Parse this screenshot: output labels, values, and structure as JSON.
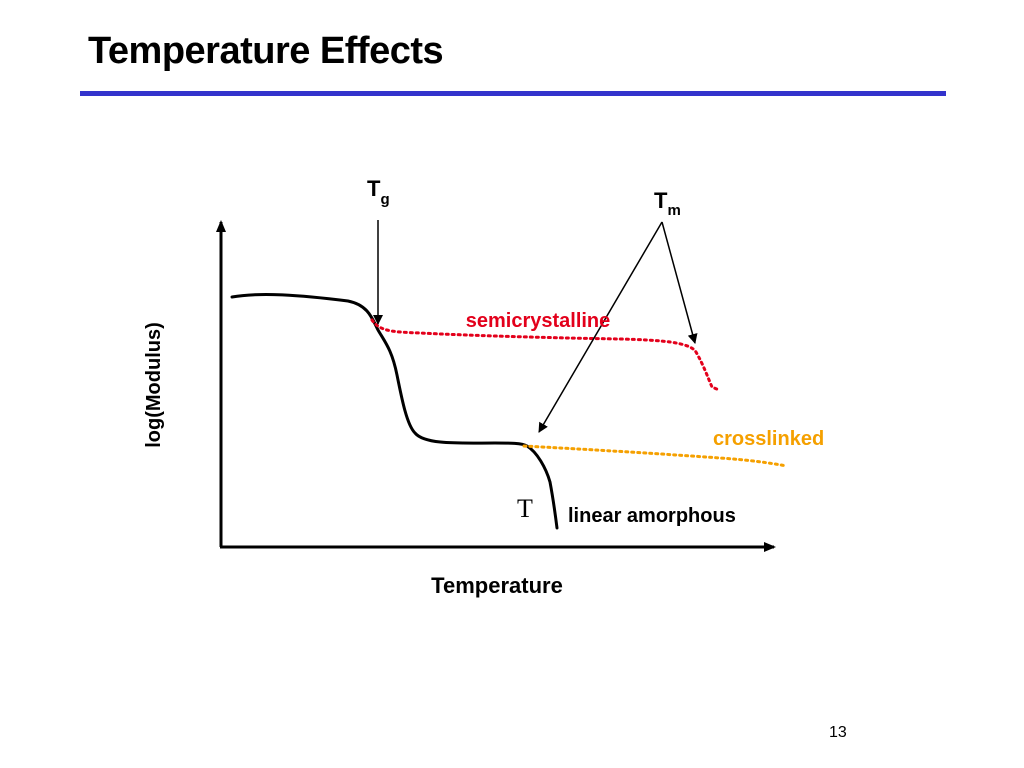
{
  "slide": {
    "title": "Temperature Effects",
    "page_number": "13"
  },
  "diagram": {
    "axis_y_label": "log(Modulus)",
    "axis_x_label": "Temperature",
    "tg_label": {
      "main": "T",
      "sub": "g"
    },
    "tm_label": {
      "main": "T",
      "sub": "m"
    },
    "curves": {
      "semicrystalline": {
        "label": "semicrystalline",
        "color": "#e3001b"
      },
      "crosslinked": {
        "label": "crosslinked",
        "color": "#f5a000"
      },
      "linear_amorphous": {
        "label": "linear amorphous",
        "color": "#000000"
      }
    },
    "stray_glyph": "T",
    "colors": {
      "title_rule": "#3333cc",
      "axes": "#000000"
    }
  }
}
